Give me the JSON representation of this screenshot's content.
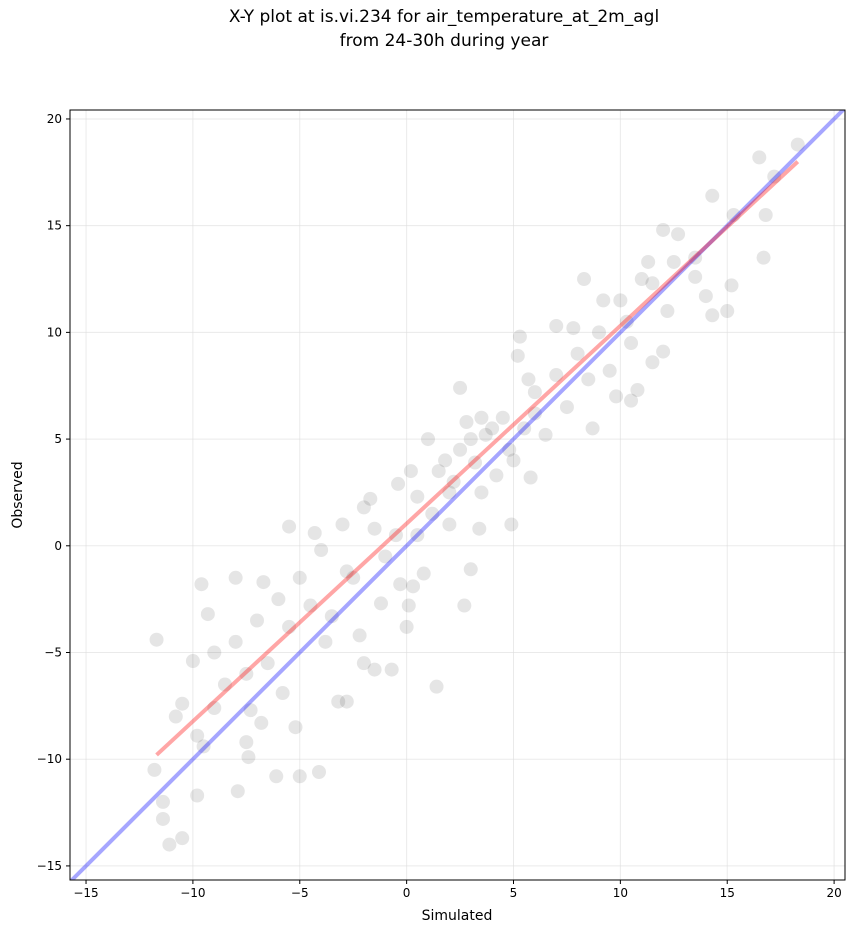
{
  "chart_data": {
    "type": "scatter",
    "title": [
      "X-Y plot at is.vi.234 for air_temperature_at_2m_agl",
      "from 24-30h during year"
    ],
    "xlabel": "Simulated",
    "ylabel": "Observed",
    "xlim": [
      -15.75,
      20.51
    ],
    "ylim": [
      -15.66,
      20.42
    ],
    "xticks": [
      {
        "value": -15,
        "label": "−15"
      },
      {
        "value": -10,
        "label": "−10"
      },
      {
        "value": -5,
        "label": "−5"
      },
      0,
      5,
      10,
      15,
      20
    ],
    "yticks": [
      {
        "value": -15,
        "label": "−15"
      },
      {
        "value": -10,
        "label": "−10"
      },
      {
        "value": -5,
        "label": "−5"
      },
      0,
      5,
      10,
      15,
      20
    ],
    "grid": true,
    "series": [
      {
        "color": "#000000",
        "alpha": 0.1,
        "x": [
          -11.7,
          -11.8,
          -11.4,
          -11.4,
          -11.1,
          -10.5,
          -9.8,
          -9.6,
          -9.3,
          -8.0,
          -7.9,
          -6.7,
          -6.1,
          -5.5,
          -5.0,
          -4.1,
          -5.2,
          -4.3,
          -3.2,
          -2.8,
          1.4,
          -1.5,
          -2.0,
          -0.7,
          0,
          -10.0,
          -10.5,
          -10.8,
          -9.8,
          -9.5,
          -7.5,
          -7.4,
          -9.0,
          -7.3,
          2.7,
          -5.8,
          -6.8,
          16.5,
          17.2,
          18.3,
          16.8,
          16.7,
          15.0,
          15.2,
          14.3,
          14.3,
          15.3,
          13.5,
          12.7,
          12,
          11.3,
          11.5,
          10.3,
          11.5,
          12,
          10.8,
          9.8,
          10.5,
          8.7,
          8.3,
          7.0,
          6,
          5.3,
          5.2,
          4.8,
          5.0,
          5.8,
          4.9,
          3.4,
          2.0,
          3.5,
          3,
          0.3,
          0.8,
          -2.5,
          2.5,
          1.0,
          1.5,
          -0.4,
          -1.7,
          -2.0,
          -3.0,
          -4.0,
          -5.0,
          -6.0,
          -7.0,
          -8.0,
          -9.0,
          -3.5,
          -2.2,
          0.5,
          2,
          3,
          3.5,
          4,
          4.5,
          2.5,
          3.2,
          6,
          7,
          8,
          9,
          10,
          11,
          12.5,
          13.5,
          14,
          9.5,
          8.5,
          7.5,
          6.5,
          5.5,
          1.2,
          -0.5,
          -1.0,
          -1.5,
          0.5,
          2.2,
          4.2,
          5.7,
          7.8,
          9.2,
          10.5,
          12.2,
          3.7,
          2.8,
          1.8,
          0.2,
          -2.8,
          -4.5,
          -5.5,
          -6.5,
          -7.5,
          -8.5,
          -3.8,
          -1.2,
          0.1,
          -0.3
        ],
        "values": [
          -4.4,
          -10.5,
          -12,
          -12.8,
          -14,
          -13.7,
          -11.7,
          -1.8,
          -3.2,
          -1.5,
          -11.5,
          -1.7,
          -10.8,
          0.9,
          -10.8,
          -10.6,
          -8.5,
          0.6,
          -7.3,
          -7.3,
          -6.6,
          -5.8,
          -5.5,
          -5.8,
          -3.8,
          -5.4,
          -7.4,
          -8.0,
          -8.9,
          -9.4,
          -9.2,
          -9.9,
          -7.6,
          -7.7,
          -2.8,
          -6.9,
          -8.3,
          18.2,
          17.3,
          18.8,
          15.5,
          13.5,
          11.0,
          12.2,
          10.8,
          16.4,
          15.5,
          13.5,
          14.6,
          14.8,
          13.3,
          12.3,
          10.5,
          8.6,
          9.1,
          7.3,
          7.0,
          6.8,
          5.5,
          12.5,
          10.3,
          6.2,
          9.8,
          8.9,
          4.5,
          4.0,
          3.2,
          1.0,
          0.8,
          1.0,
          2.5,
          -1.1,
          -1.9,
          -1.3,
          -1.5,
          7.4,
          5.0,
          3.5,
          2.9,
          2.2,
          1.8,
          1.0,
          -0.2,
          -1.5,
          -2.5,
          -3.5,
          -4.5,
          -5.0,
          -3.3,
          -4.2,
          0.5,
          2.5,
          5,
          6,
          5.5,
          6,
          4.5,
          3.9,
          7.2,
          8,
          9,
          10,
          11.5,
          12.5,
          13.3,
          12.6,
          11.7,
          8.2,
          7.8,
          6.5,
          5.2,
          5.5,
          1.5,
          0.5,
          -0.5,
          0.8,
          2.3,
          3.0,
          3.3,
          7.8,
          10.2,
          11.5,
          9.5,
          11,
          5.2,
          5.8,
          4.0,
          3.5,
          -1.2,
          -2.8,
          -3.8,
          -5.5,
          -6,
          -6.5,
          -4.5,
          -2.7,
          -2.8,
          -1.8
        ]
      }
    ],
    "lines": [
      {
        "color": "#0000ff",
        "alpha": 0.35,
        "x": [
          -15.75,
          20.51
        ],
        "values": [
          -15.75,
          20.51
        ]
      },
      {
        "color": "#ff0000",
        "alpha": 0.35,
        "x": [
          -11.7,
          18.3
        ],
        "values": [
          -9.8,
          18.0
        ]
      }
    ]
  }
}
